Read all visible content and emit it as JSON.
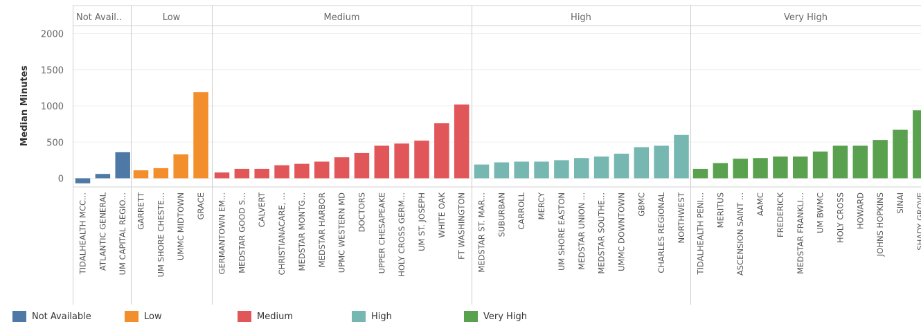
{
  "chart_data": {
    "type": "bar",
    "ylabel": "Median Minutes",
    "ylim": [
      -100,
      2100
    ],
    "yticks": [
      0,
      500,
      1000,
      1500,
      2000
    ],
    "grid": true,
    "legend_position": "bottom",
    "groups": [
      {
        "name": "Not Avail..",
        "legend_label": "Not Available",
        "color": "#4e79a7",
        "categories": [
          "TIDALHEALTH MCC...",
          "ATLANTIC GENERAL",
          "UM CAPITAL REGIO..."
        ],
        "values": [
          -70,
          60,
          360
        ]
      },
      {
        "name": "Low",
        "legend_label": "Low",
        "color": "#f28e2b",
        "categories": [
          "GARRETT",
          "UM SHORE CHESTE...",
          "UMMC MIDTOWN",
          "GRACE"
        ],
        "values": [
          110,
          140,
          330,
          1190
        ]
      },
      {
        "name": "Medium",
        "legend_label": "Medium",
        "color": "#e15759",
        "categories": [
          "GERMANTOWN EM...",
          "MEDSTAR GOOD S...",
          "CALVERT",
          "CHRISTIANACARE, ...",
          "MEDSTAR MONTG...",
          "MEDSTAR HARBOR",
          "UPMC WESTERN MD",
          "DOCTORS",
          "UPPER CHESAPEAKE",
          "HOLY CROSS GERM...",
          "UM ST. JOSEPH",
          "WHITE OAK",
          "FT WASHINGTON"
        ],
        "values": [
          80,
          130,
          130,
          180,
          200,
          230,
          290,
          350,
          450,
          480,
          520,
          760,
          1020
        ]
      },
      {
        "name": "High",
        "legend_label": "High",
        "color": "#76b7b2",
        "categories": [
          "MEDSTAR ST. MAR...",
          "SUBURBAN",
          "CARROLL",
          "MERCY",
          "UM SHORE EASTON",
          "MEDSTAR UNION ...",
          "MEDSTAR SOUTHE...",
          "UMMC DOWNTOWN",
          "GBMC",
          "CHARLES REGIONAL",
          "NORTHWEST"
        ],
        "values": [
          190,
          220,
          230,
          230,
          250,
          280,
          300,
          340,
          430,
          450,
          600
        ]
      },
      {
        "name": "Very High",
        "legend_label": "Very High",
        "color": "#59a14f",
        "categories": [
          "TIDALHEALTH PENI...",
          "MERITUS",
          "ASCENSION SAINT ...",
          "AAMC",
          "FREDERICK",
          "MEDSTAR FRANKLI...",
          "UM BWMC",
          "HOLY CROSS",
          "HOWARD",
          "JOHNS HOPKINS",
          "SINAI",
          "SHADY GROVE"
        ],
        "values": [
          130,
          210,
          270,
          280,
          300,
          300,
          370,
          450,
          450,
          530,
          670,
          940
        ]
      }
    ]
  }
}
